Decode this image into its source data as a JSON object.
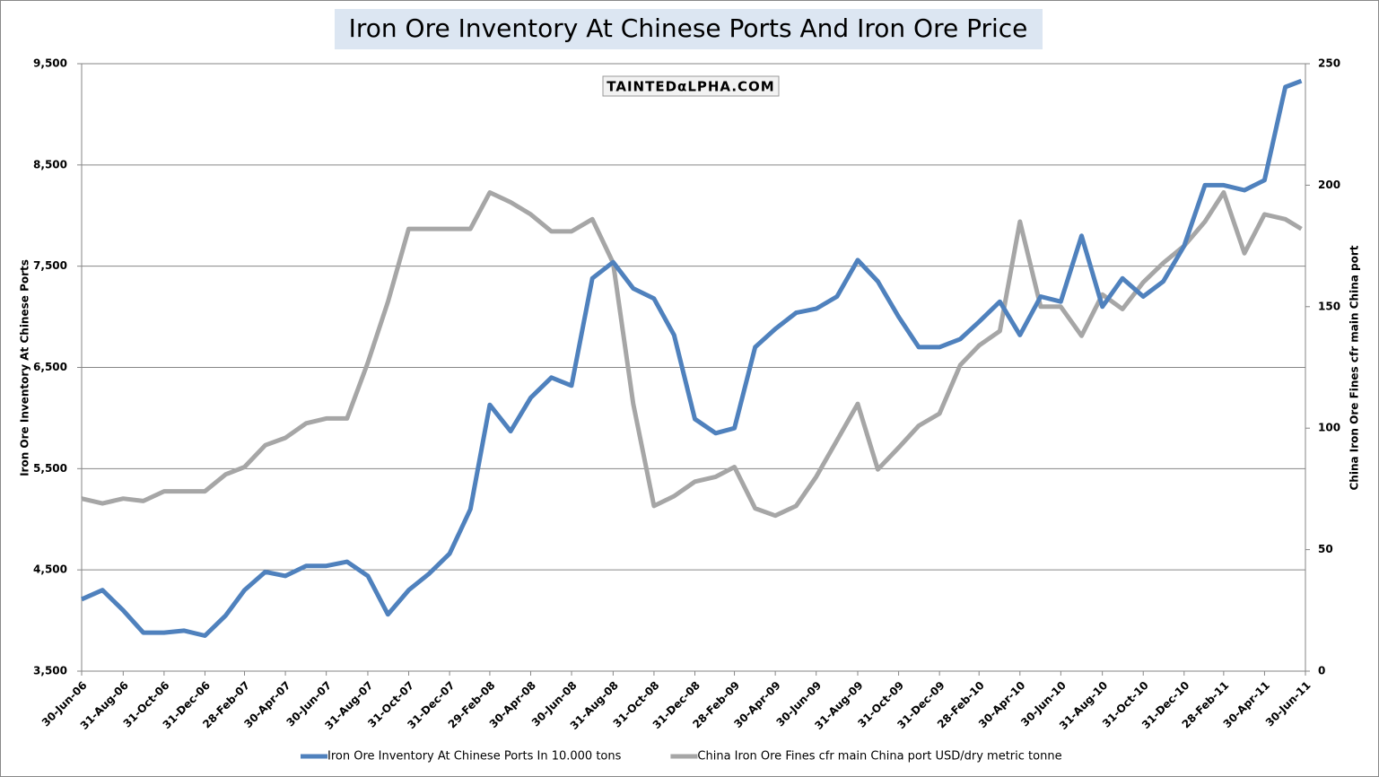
{
  "chart_data": {
    "type": "line",
    "title": "Iron Ore Inventory At Chinese Ports And Iron Ore Price",
    "watermark": "TAINTEDαLPHA.COM",
    "y_label": "Iron Ore Inventory At Chinese Ports",
    "y2_label": "China Iron Ore Fines cfr main China port",
    "x": [
      "2006-06-30",
      "2006-07-31",
      "2006-08-31",
      "2006-09-30",
      "2006-10-31",
      "2006-11-30",
      "2006-12-31",
      "2007-01-31",
      "2007-02-28",
      "2007-03-31",
      "2007-04-30",
      "2007-05-31",
      "2007-06-30",
      "2007-07-31",
      "2007-08-31",
      "2007-09-30",
      "2007-10-31",
      "2007-11-30",
      "2007-12-31",
      "2008-01-31",
      "2008-02-29",
      "2008-03-31",
      "2008-04-30",
      "2008-05-31",
      "2008-06-30",
      "2008-07-31",
      "2008-08-31",
      "2008-09-30",
      "2008-10-31",
      "2008-11-30",
      "2008-12-31",
      "2009-01-31",
      "2009-02-28",
      "2009-03-31",
      "2009-04-30",
      "2009-05-31",
      "2009-06-30",
      "2009-07-31",
      "2009-08-31",
      "2009-09-30",
      "2009-10-31",
      "2009-11-30",
      "2009-12-31",
      "2010-01-31",
      "2010-02-28",
      "2010-03-31",
      "2010-04-30",
      "2010-05-31",
      "2010-06-30",
      "2010-07-31",
      "2010-08-31",
      "2010-09-30",
      "2010-10-31",
      "2010-11-30",
      "2010-12-31",
      "2011-01-31",
      "2011-02-28",
      "2011-03-31",
      "2011-04-30",
      "2011-05-31",
      "2011-06-24"
    ],
    "series": [
      {
        "name": "Iron Ore Inventory At Chinese Ports In 10.000 tons",
        "color": "#4f81bd",
        "values": [
          4210,
          4300,
          4100,
          3880,
          3880,
          3900,
          3850,
          4050,
          4300,
          4480,
          4440,
          4540,
          4540,
          4580,
          4440,
          4060,
          4300,
          4460,
          4660,
          5100,
          6130,
          5870,
          6200,
          6400,
          6320,
          7380,
          7540,
          7280,
          7180,
          6820,
          5990,
          5850,
          5900,
          6700,
          6880,
          7040,
          7080,
          7200,
          7560,
          7350,
          7000,
          6700,
          6700,
          6780,
          6950,
          7150,
          6820,
          7200,
          7150,
          7800,
          7100,
          7380,
          7200,
          7350,
          7700,
          8300,
          8300,
          8250,
          8350,
          9270,
          9330
        ]
      },
      {
        "name": "China Iron Ore Fines cfr main China port USD/dry metric tonne",
        "color": "#a6a6a6",
        "axis": "y2",
        "values": [
          71,
          69,
          71,
          70,
          74,
          74,
          74,
          81,
          84,
          93,
          96,
          102,
          104,
          104,
          127,
          152,
          182,
          182,
          182,
          182,
          197,
          193,
          188,
          181,
          181,
          186,
          168,
          110,
          68,
          72,
          78,
          80,
          84,
          67,
          64,
          68,
          80,
          95,
          110,
          83,
          92,
          101,
          106,
          126,
          134,
          140,
          185,
          150,
          150,
          138,
          155,
          149,
          160,
          168,
          175,
          185,
          197,
          172,
          188,
          186,
          182
        ]
      }
    ],
    "xlim": [
      "2006-06-30",
      "2011-06-30"
    ],
    "xticks": [
      {
        "value": "2006-06-30",
        "label": "30-Jun-06"
      },
      {
        "value": "2006-08-31",
        "label": "31-Aug-06"
      },
      {
        "value": "2006-10-31",
        "label": "31-Oct-06"
      },
      {
        "value": "2006-12-31",
        "label": "31-Dec-06"
      },
      {
        "value": "2007-02-28",
        "label": "28-Feb-07"
      },
      {
        "value": "2007-04-30",
        "label": "30-Apr-07"
      },
      {
        "value": "2007-06-30",
        "label": "30-Jun-07"
      },
      {
        "value": "2007-08-31",
        "label": "31-Aug-07"
      },
      {
        "value": "2007-10-31",
        "label": "31-Oct-07"
      },
      {
        "value": "2007-12-31",
        "label": "31-Dec-07"
      },
      {
        "value": "2008-02-29",
        "label": "29-Feb-08"
      },
      {
        "value": "2008-04-30",
        "label": "30-Apr-08"
      },
      {
        "value": "2008-06-30",
        "label": "30-Jun-08"
      },
      {
        "value": "2008-08-31",
        "label": "31-Aug-08"
      },
      {
        "value": "2008-10-31",
        "label": "31-Oct-08"
      },
      {
        "value": "2008-12-31",
        "label": "31-Dec-08"
      },
      {
        "value": "2009-02-28",
        "label": "28-Feb-09"
      },
      {
        "value": "2009-04-30",
        "label": "30-Apr-09"
      },
      {
        "value": "2009-06-30",
        "label": "30-Jun-09"
      },
      {
        "value": "2009-08-31",
        "label": "31-Aug-09"
      },
      {
        "value": "2009-10-31",
        "label": "31-Oct-09"
      },
      {
        "value": "2009-12-31",
        "label": "31-Dec-09"
      },
      {
        "value": "2010-02-28",
        "label": "28-Feb-10"
      },
      {
        "value": "2010-04-30",
        "label": "30-Apr-10"
      },
      {
        "value": "2010-06-30",
        "label": "30-Jun-10"
      },
      {
        "value": "2010-08-31",
        "label": "31-Aug-10"
      },
      {
        "value": "2010-10-31",
        "label": "31-Oct-10"
      },
      {
        "value": "2010-12-31",
        "label": "31-Dec-10"
      },
      {
        "value": "2011-02-28",
        "label": "28-Feb-11"
      },
      {
        "value": "2011-04-30",
        "label": "30-Apr-11"
      },
      {
        "value": "2011-06-30",
        "label": "30-Jun-11"
      }
    ],
    "ylim": [
      3500,
      9500
    ],
    "yticks": [
      {
        "value": 3500,
        "label": "3,500"
      },
      {
        "value": 4500,
        "label": "4,500"
      },
      {
        "value": 5500,
        "label": "5,500"
      },
      {
        "value": 6500,
        "label": "6,500"
      },
      {
        "value": 7500,
        "label": "7,500"
      },
      {
        "value": 8500,
        "label": "8,500"
      },
      {
        "value": 9500,
        "label": "9,500"
      }
    ],
    "y2lim": [
      0,
      250
    ],
    "y2ticks": [
      0,
      50,
      100,
      150,
      200,
      250
    ],
    "grid": true,
    "legend": "bottom"
  }
}
